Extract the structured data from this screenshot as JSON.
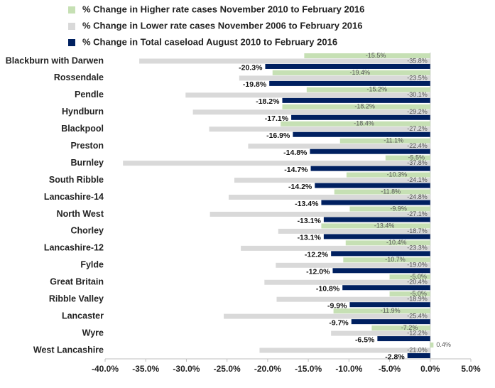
{
  "chart_data": {
    "type": "hbar",
    "categories": [
      "Blackburn with Darwen",
      "Rossendale",
      "Pendle",
      "Hyndburn",
      "Blackpool",
      "Preston",
      "Burnley",
      "South Ribble",
      "Lancashire-14",
      "North West",
      "Chorley",
      "Lancashire-12",
      "Fylde",
      "Great Britain",
      "Ribble Valley",
      "Lancaster",
      "Wyre",
      "West Lancashire"
    ],
    "series": [
      {
        "name": "% Change in Higher rate cases November 2010 to February 2016",
        "color": "#c6e0b4",
        "values": [
          -15.5,
          -19.4,
          -15.2,
          -18.2,
          -18.4,
          -11.1,
          -5.5,
          -10.3,
          -11.8,
          -9.9,
          -13.4,
          -10.4,
          -10.7,
          -5.0,
          -5.0,
          -11.9,
          -7.2,
          0.4
        ],
        "value_labels": [
          "-15.5%",
          "-19.4%",
          "-15.2%",
          "-18.2%",
          "-18.4%",
          "-11.1%",
          "-5.5%",
          "-10.3%",
          "-11.8%",
          "-9.9%",
          "-13.4%",
          "-10.4%",
          "-10.7%",
          "-5.0%",
          "-5.0%",
          "-11.9%",
          "-7.2%",
          "0.4%"
        ]
      },
      {
        "name": "% Change in Lower rate cases November 2006 to February 2016",
        "color": "#d9d9d9",
        "values": [
          -35.8,
          -23.5,
          -30.1,
          -29.2,
          -27.2,
          -22.4,
          -37.8,
          -24.1,
          -24.8,
          -27.1,
          -18.7,
          -23.3,
          -19.0,
          -20.4,
          -18.9,
          -25.4,
          -12.2,
          -21.0
        ],
        "value_labels": [
          "-35.8%",
          "-23.5%",
          "-30.1%",
          "-29.2%",
          "-27.2%",
          "-22.4%",
          "-37.8%",
          "-24.1%",
          "-24.8%",
          "-27.1%",
          "-18.7%",
          "-23.3%",
          "-19.0%",
          "-20.4%",
          "-18.9%",
          "-25.4%",
          "-12.2%",
          "-21.0%"
        ]
      },
      {
        "name": "% Change in Total caseload August 2010 to February 2016",
        "color": "#002060",
        "values": [
          -20.3,
          -19.8,
          -18.2,
          -17.1,
          -16.9,
          -14.8,
          -14.7,
          -14.2,
          -13.4,
          -13.1,
          -13.1,
          -12.2,
          -12.0,
          -10.8,
          -9.9,
          -9.7,
          -6.5,
          -2.8
        ],
        "value_labels": [
          "-20.3%",
          "-19.8%",
          "-18.2%",
          "-17.1%",
          "-16.9%",
          "-14.8%",
          "-14.7%",
          "-14.2%",
          "-13.4%",
          "-13.1%",
          "-13.1%",
          "-12.2%",
          "-12.0%",
          "-10.8%",
          "-9.9%",
          "-9.7%",
          "-6.5%",
          "-2.8%"
        ]
      }
    ],
    "xlim": [
      -40,
      5
    ],
    "xticks": [
      {
        "value": -40,
        "label": "-40.0%"
      },
      {
        "value": -35,
        "label": "-35.0%"
      },
      {
        "value": -30,
        "label": "-30.0%"
      },
      {
        "value": -25,
        "label": "-25.0%"
      },
      {
        "value": -20,
        "label": "-20.0%"
      },
      {
        "value": -15,
        "label": "-15.0%"
      },
      {
        "value": -10,
        "label": "-10.0%"
      },
      {
        "value": -5,
        "label": "-5.0%"
      },
      {
        "value": 0,
        "label": "0.0%"
      },
      {
        "value": 5,
        "label": "5.0%"
      }
    ]
  }
}
